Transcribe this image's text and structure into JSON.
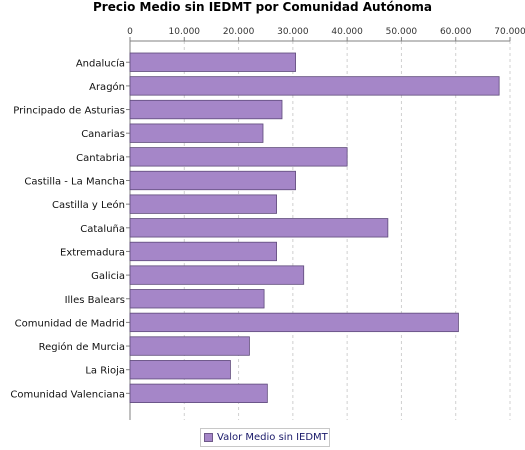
{
  "chart_data": {
    "type": "bar",
    "orientation": "horizontal",
    "title": "Precio Medio sin IEDMT por Comunidad Autónoma",
    "categories": [
      "Andalucía",
      "Aragón",
      "Principado de Asturias",
      "Canarias",
      "Cantabria",
      "Castilla - La Mancha",
      "Castilla y León",
      "Cataluña",
      "Extremadura",
      "Galicia",
      "Illes Balears",
      "Comunidad de Madrid",
      "Región de Murcia",
      "La Rioja",
      "Comunidad Valenciana"
    ],
    "series": [
      {
        "name": "Valor Medio sin IEDMT",
        "values": [
          30500,
          68000,
          28000,
          24500,
          40000,
          30500,
          27000,
          47500,
          27000,
          32000,
          24700,
          60500,
          22000,
          18500,
          25300
        ]
      }
    ],
    "x_ticks": [
      "0",
      "10.000",
      "20.000",
      "30.000",
      "40.000",
      "50.000",
      "60.000",
      "70.000"
    ],
    "xlim": [
      0,
      70000
    ],
    "grid": true,
    "legend_position": "bottom",
    "colors": {
      "bar": "#a586c8",
      "bar_border": "#5e4a7a",
      "grid": "#d0d0d0"
    }
  }
}
